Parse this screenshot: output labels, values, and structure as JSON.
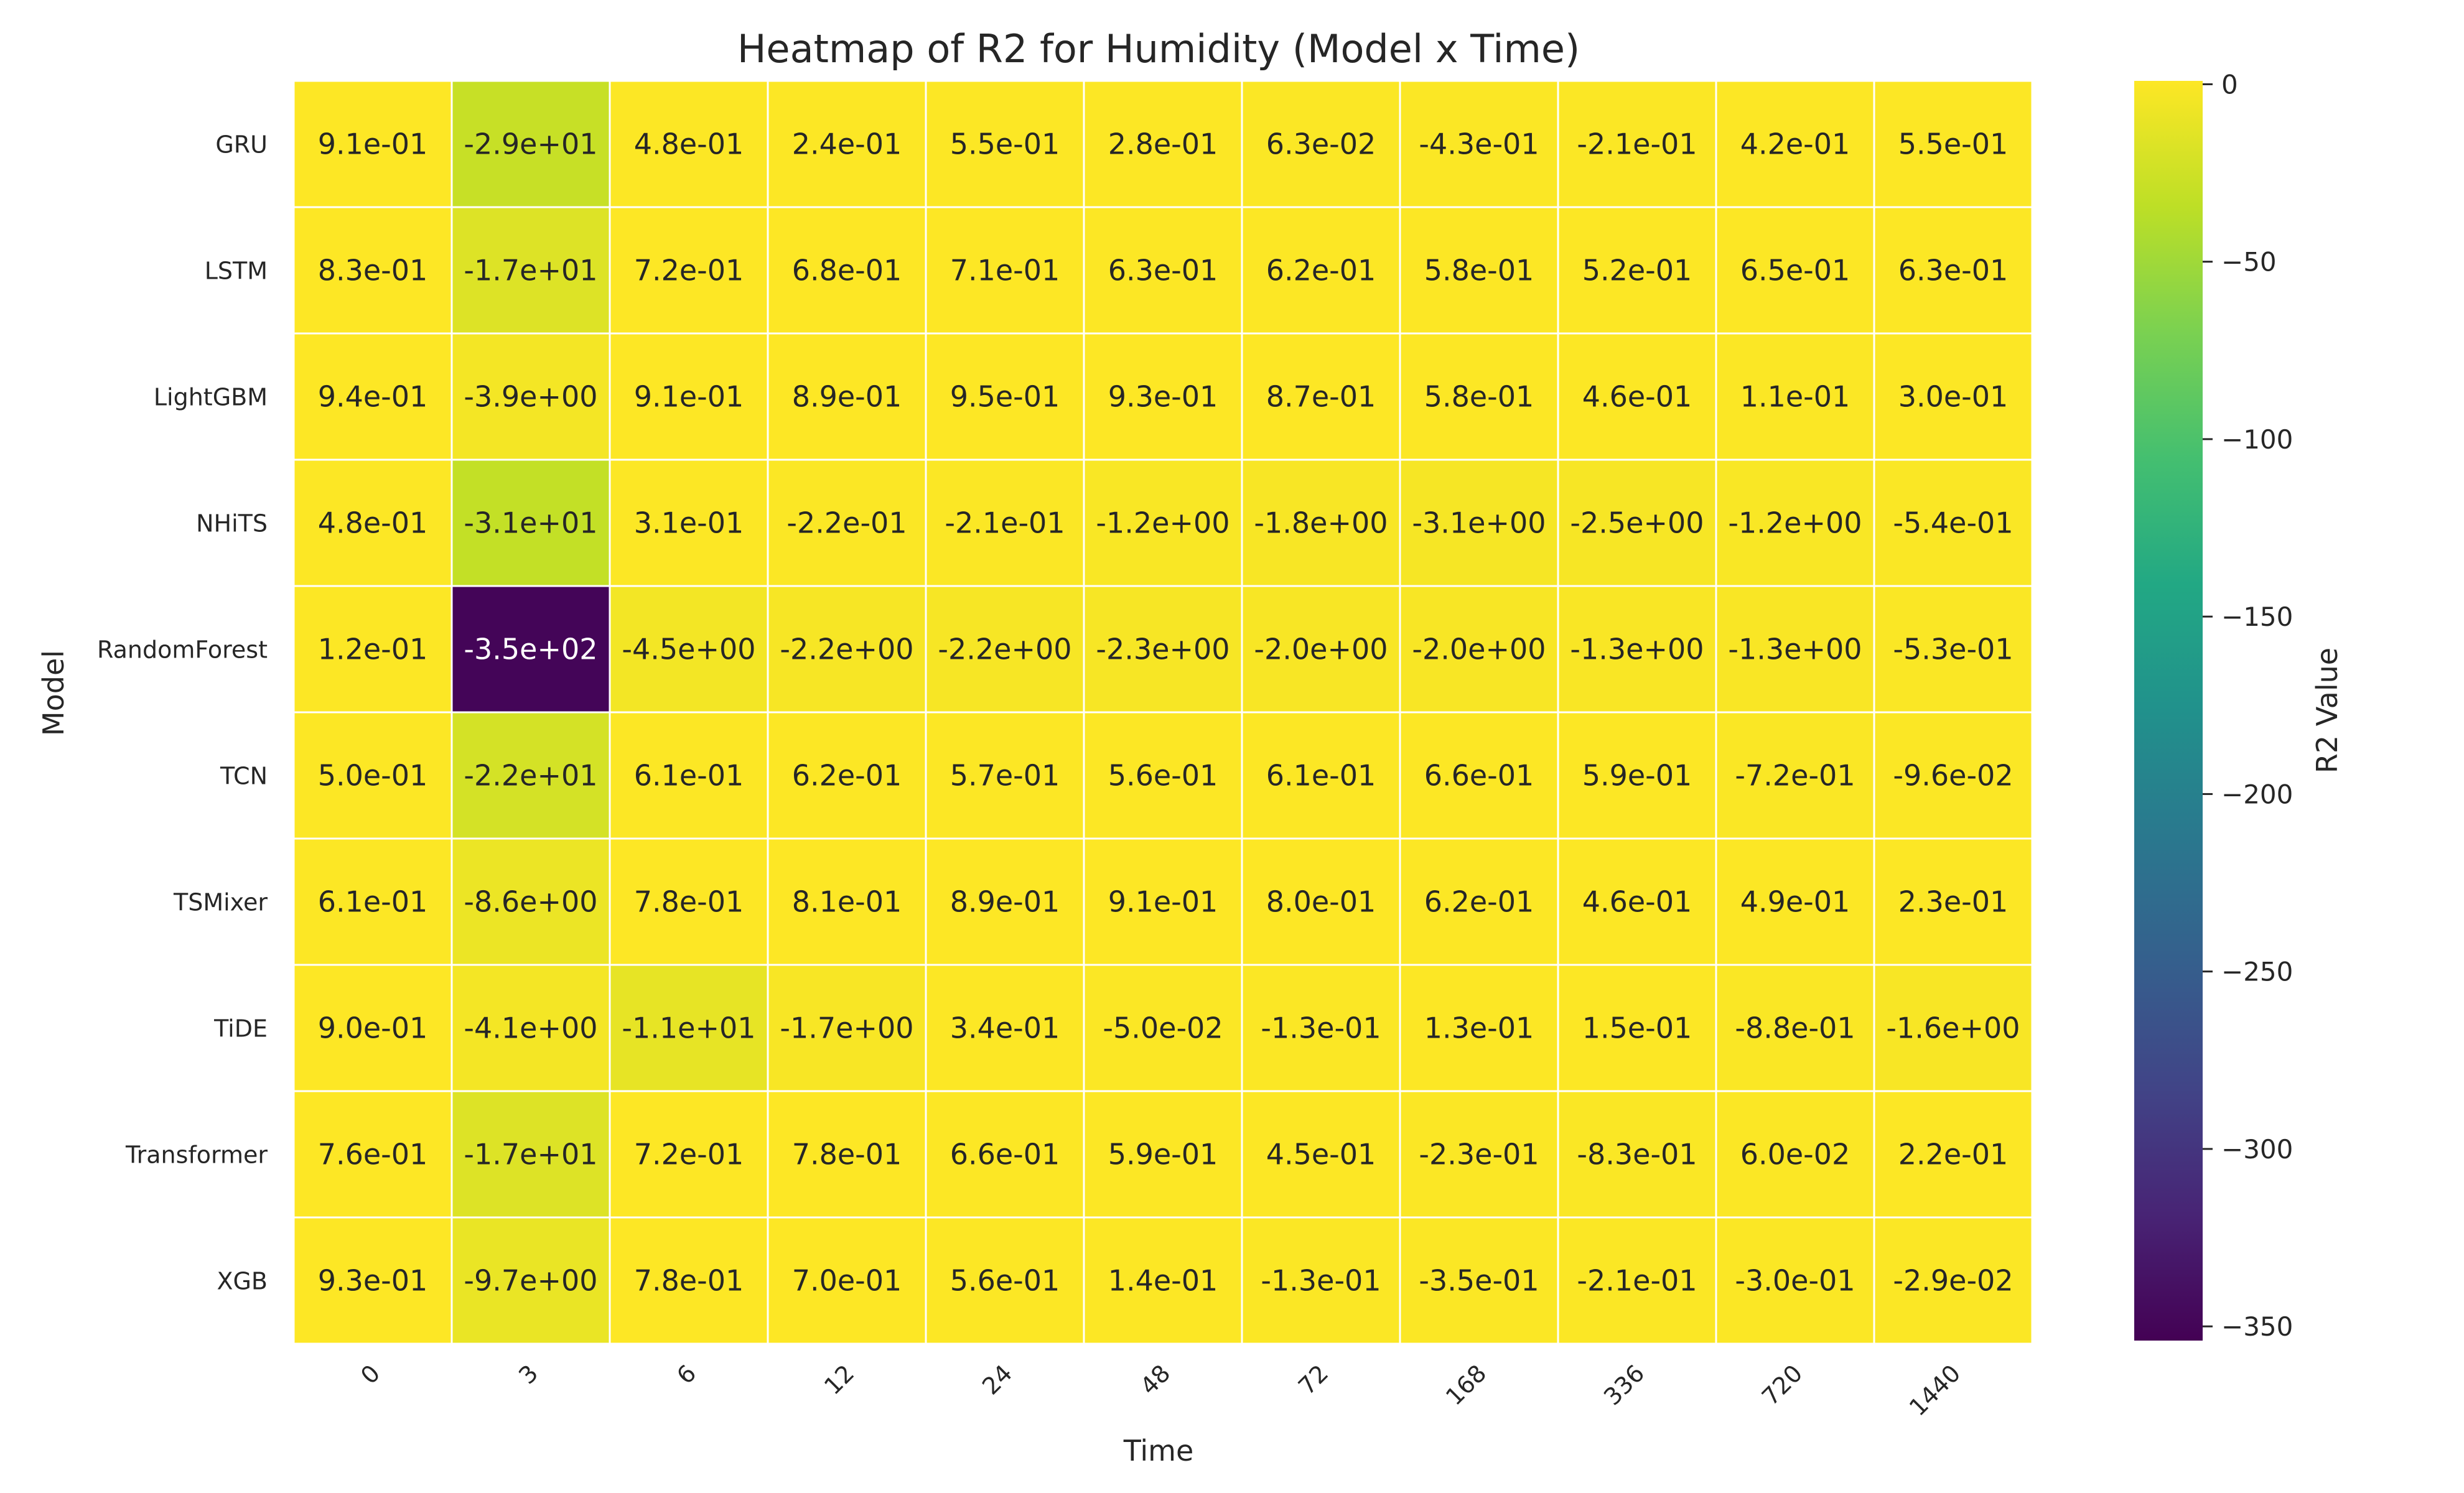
{
  "chart_data": {
    "type": "heatmap",
    "title": "Heatmap of R2 for Humidity (Model x Time)",
    "xlabel": "Time",
    "ylabel": "Model",
    "colorbar_label": "R2 Value",
    "colormap": "viridis",
    "vmin": -354.0,
    "vmax": 0.95,
    "x": [
      "0",
      "3",
      "6",
      "12",
      "24",
      "48",
      "72",
      "168",
      "336",
      "720",
      "1440"
    ],
    "y": [
      "GRU",
      "LSTM",
      "LightGBM",
      "NHiTS",
      "RandomForest",
      "TCN",
      "TSMixer",
      "TiDE",
      "Transformer",
      "XGB"
    ],
    "values": [
      [
        0.91,
        -29,
        0.48,
        0.24,
        0.55,
        0.28,
        0.063,
        -0.43,
        -0.21,
        0.42,
        0.55
      ],
      [
        0.83,
        -17,
        0.72,
        0.68,
        0.71,
        0.63,
        0.62,
        0.58,
        0.52,
        0.65,
        0.63
      ],
      [
        0.94,
        -3.9,
        0.91,
        0.89,
        0.95,
        0.93,
        0.87,
        0.58,
        0.46,
        0.11,
        0.3
      ],
      [
        0.48,
        -31,
        0.31,
        -0.22,
        -0.21,
        -1.2,
        -1.8,
        -3.1,
        -2.5,
        -1.2,
        -0.54
      ],
      [
        0.12,
        -350,
        -4.5,
        -2.2,
        -2.2,
        -2.3,
        -2.0,
        -2.0,
        -1.3,
        -1.3,
        -0.53
      ],
      [
        0.5,
        -22,
        0.61,
        0.62,
        0.57,
        0.56,
        0.61,
        0.66,
        0.59,
        -0.72,
        -0.096
      ],
      [
        0.61,
        -8.6,
        0.78,
        0.81,
        0.89,
        0.91,
        0.8,
        0.62,
        0.46,
        0.49,
        0.23
      ],
      [
        0.9,
        -4.1,
        -11,
        -1.7,
        0.34,
        -0.05,
        -0.13,
        0.13,
        0.15,
        -0.88,
        -1.6
      ],
      [
        0.76,
        -17,
        0.72,
        0.78,
        0.66,
        0.59,
        0.45,
        -0.23,
        -0.83,
        0.06,
        0.22
      ],
      [
        0.93,
        -9.7,
        0.78,
        0.7,
        0.56,
        0.14,
        -0.13,
        -0.35,
        -0.21,
        -0.3,
        -0.029
      ]
    ],
    "cell_labels": [
      [
        "9.1e-01",
        "-2.9e+01",
        "4.8e-01",
        "2.4e-01",
        "5.5e-01",
        "2.8e-01",
        "6.3e-02",
        "-4.3e-01",
        "-2.1e-01",
        "4.2e-01",
        "5.5e-01"
      ],
      [
        "8.3e-01",
        "-1.7e+01",
        "7.2e-01",
        "6.8e-01",
        "7.1e-01",
        "6.3e-01",
        "6.2e-01",
        "5.8e-01",
        "5.2e-01",
        "6.5e-01",
        "6.3e-01"
      ],
      [
        "9.4e-01",
        "-3.9e+00",
        "9.1e-01",
        "8.9e-01",
        "9.5e-01",
        "9.3e-01",
        "8.7e-01",
        "5.8e-01",
        "4.6e-01",
        "1.1e-01",
        "3.0e-01"
      ],
      [
        "4.8e-01",
        "-3.1e+01",
        "3.1e-01",
        "-2.2e-01",
        "-2.1e-01",
        "-1.2e+00",
        "-1.8e+00",
        "-3.1e+00",
        "-2.5e+00",
        "-1.2e+00",
        "-5.4e-01"
      ],
      [
        "1.2e-01",
        "-3.5e+02",
        "-4.5e+00",
        "-2.2e+00",
        "-2.2e+00",
        "-2.3e+00",
        "-2.0e+00",
        "-2.0e+00",
        "-1.3e+00",
        "-1.3e+00",
        "-5.3e-01"
      ],
      [
        "5.0e-01",
        "-2.2e+01",
        "6.1e-01",
        "6.2e-01",
        "5.7e-01",
        "5.6e-01",
        "6.1e-01",
        "6.6e-01",
        "5.9e-01",
        "-7.2e-01",
        "-9.6e-02"
      ],
      [
        "6.1e-01",
        "-8.6e+00",
        "7.8e-01",
        "8.1e-01",
        "8.9e-01",
        "9.1e-01",
        "8.0e-01",
        "6.2e-01",
        "4.6e-01",
        "4.9e-01",
        "2.3e-01"
      ],
      [
        "9.0e-01",
        "-4.1e+00",
        "-1.1e+01",
        "-1.7e+00",
        "3.4e-01",
        "-5.0e-02",
        "-1.3e-01",
        "1.3e-01",
        "1.5e-01",
        "-8.8e-01",
        "-1.6e+00"
      ],
      [
        "7.6e-01",
        "-1.7e+01",
        "7.2e-01",
        "7.8e-01",
        "6.6e-01",
        "5.9e-01",
        "4.5e-01",
        "-2.3e-01",
        "-8.3e-01",
        "6.0e-02",
        "2.2e-01"
      ],
      [
        "9.3e-01",
        "-9.7e+00",
        "7.8e-01",
        "7.0e-01",
        "5.6e-01",
        "1.4e-01",
        "-1.3e-01",
        "-3.5e-01",
        "-2.1e-01",
        "-3.0e-01",
        "-2.9e-02"
      ]
    ],
    "colorbar_ticks": [
      0,
      -50,
      -100,
      -150,
      -200,
      -250,
      -300,
      -350
    ],
    "colorbar_tick_labels": [
      "0",
      "−50",
      "−100",
      "−150",
      "−200",
      "−250",
      "−300",
      "−350"
    ],
    "grid": false,
    "cell_border_color": "#ffffff",
    "text_color_light_cells": "#262626",
    "text_color_dark_cells": "#ffffff"
  }
}
